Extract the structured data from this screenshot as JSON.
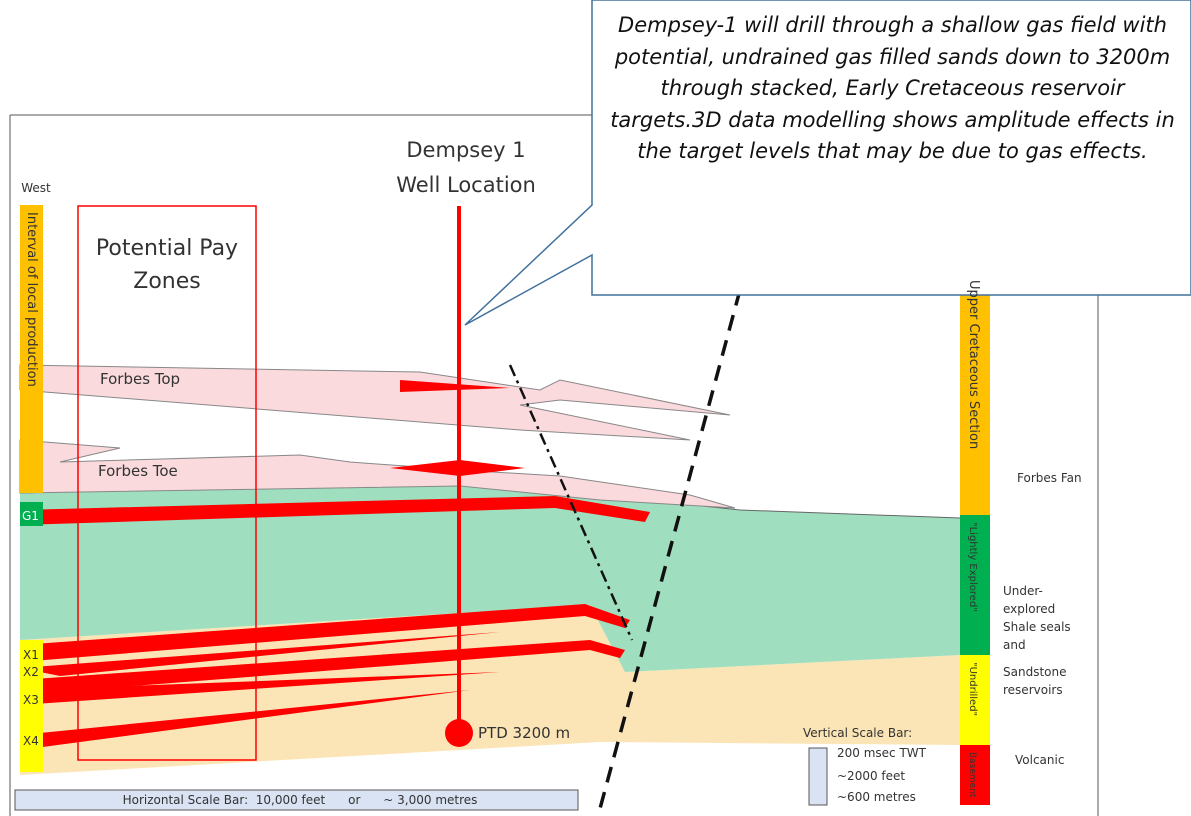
{
  "west_label": "West",
  "interval_label": "Interval of local production",
  "pay_zones_label": [
    "Potential Pay",
    "Zones"
  ],
  "well_label": [
    "Dempsey 1",
    "Well Location"
  ],
  "callout": "Dempsey-1 will drill through a shallow gas field with potential, undrained gas filled sands down to 3200m through stacked, Early Cretaceous reservoir targets.3D data modelling shows amplitude effects in the target levels that may be due to gas effects.",
  "horizons": {
    "forbes_top": "Forbes Top",
    "forbes_toe": "Forbes Toe"
  },
  "beds": [
    "G1",
    "X1",
    "X2",
    "X3",
    "X4"
  ],
  "ptd_label": "PTD 3200 m",
  "column": [
    "Upper Cretaceous Section",
    "\"Lightly Explored\"",
    "\"Undrilled\"",
    "Basement"
  ],
  "descriptions": {
    "forbes_fan": "Forbes Fan",
    "under_explored": [
      "Under-",
      "explored",
      "Shale seals",
      "and",
      "Sandstone",
      "reservoirs"
    ],
    "volcanic": "Volcanic"
  },
  "vertical_scale": [
    "Vertical Scale Bar:",
    "200 msec TWT",
    "~2000 feet",
    "~600 metres"
  ],
  "horizontal_scale": "Horizontal Scale Bar:  10,000 feet      or      ~ 3,000 metres"
}
